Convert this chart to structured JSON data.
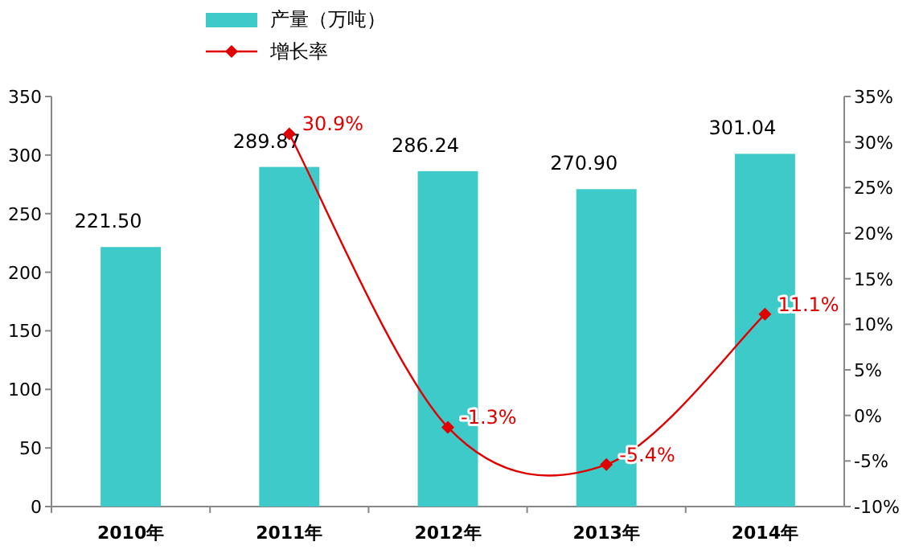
{
  "chart_data": {
    "type": "bar",
    "categories": [
      "2010年",
      "2011年",
      "2012年",
      "2013年",
      "2014年"
    ],
    "series": [
      {
        "name": "产量（万吨）",
        "color": "#3fcaca",
        "values": [
          221.5,
          289.87,
          286.24,
          270.9,
          301.04
        ],
        "value_labels": [
          "221.50",
          "289.87",
          "286.24",
          "270.90",
          "301.04"
        ]
      },
      {
        "name": "增长率",
        "type": "line",
        "axis": "y2",
        "color": "#e00000",
        "marker": "diamond",
        "values": [
          null,
          30.9,
          -1.3,
          -5.4,
          11.1
        ],
        "value_labels": [
          null,
          "30.9%",
          "-1.3%",
          "-5.4%",
          "11.1%"
        ]
      }
    ],
    "ylim": [
      0,
      350
    ],
    "yticks": [
      0,
      50,
      100,
      150,
      200,
      250,
      300,
      350
    ],
    "y2lim": [
      -10,
      35
    ],
    "y2ticks": [
      {
        "value": -10,
        "label": "-10%"
      },
      {
        "value": -5,
        "label": "-5%"
      },
      {
        "value": 0,
        "label": "0%"
      },
      {
        "value": 5,
        "label": "5%"
      },
      {
        "value": 10,
        "label": "10%"
      },
      {
        "value": 15,
        "label": "15%"
      },
      {
        "value": 20,
        "label": "20%"
      },
      {
        "value": 25,
        "label": "25%"
      },
      {
        "value": 30,
        "label": "30%"
      },
      {
        "value": 35,
        "label": "35%"
      }
    ],
    "grid": false,
    "legend": "top"
  }
}
